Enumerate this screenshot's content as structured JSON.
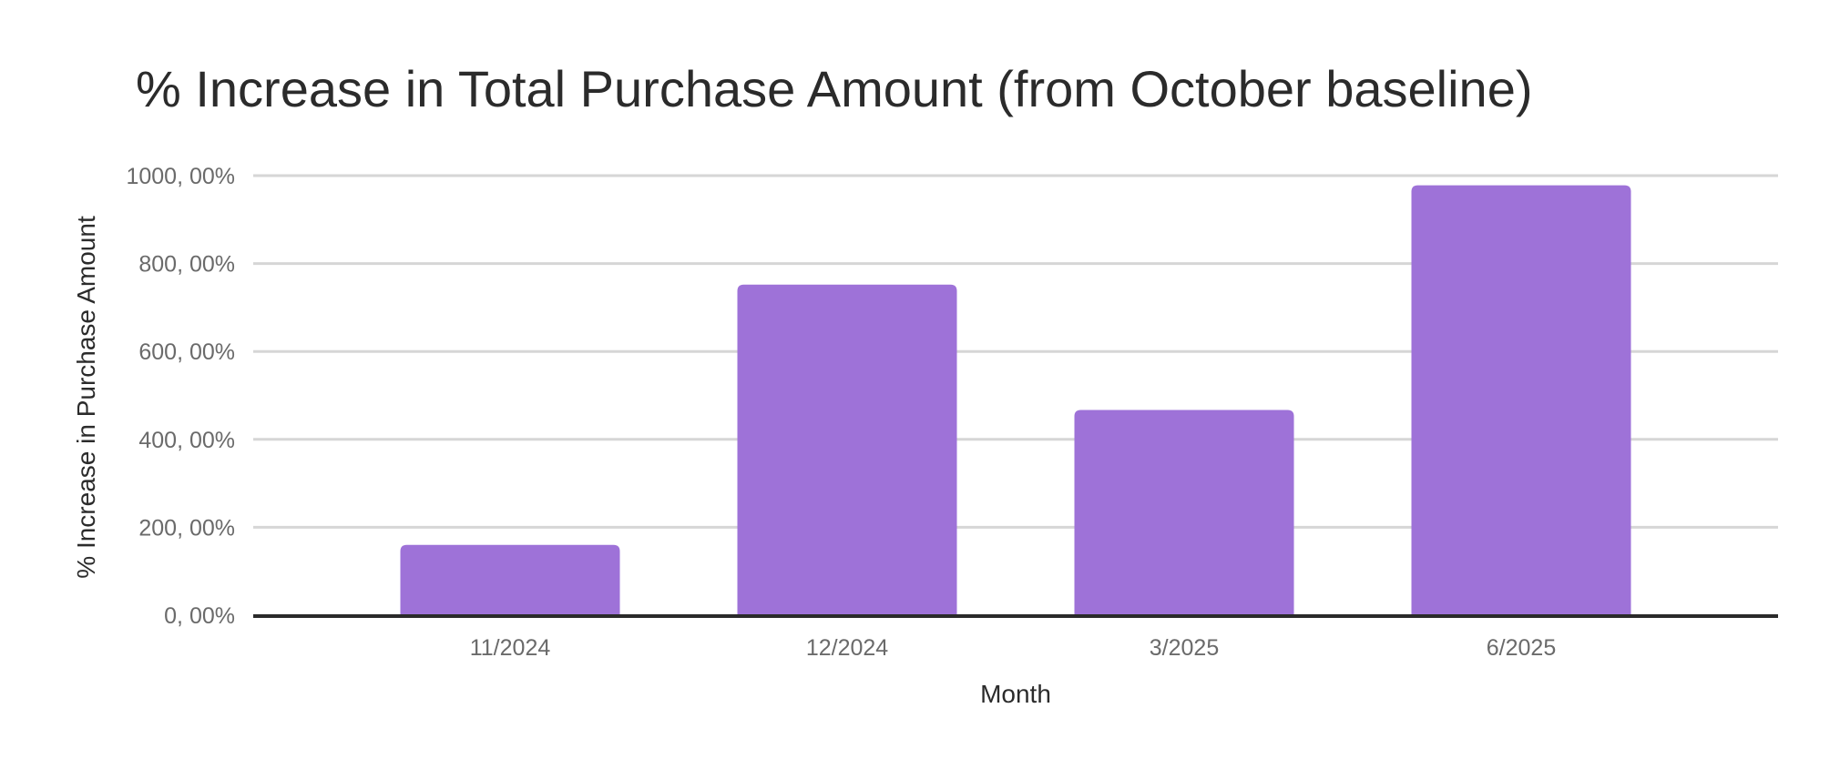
{
  "chart_data": {
    "type": "bar",
    "title": "% Increase in Total Purchase Amount (from October baseline)",
    "xlabel": "Month",
    "ylabel": "% Increase in Purchase Amount",
    "categories": [
      "11/2024",
      "12/2024",
      "3/2025",
      "6/2025"
    ],
    "values": [
      160,
      752,
      467,
      978
    ],
    "unit": "%",
    "ylim": [
      0,
      1000
    ],
    "yticks": [
      0,
      200,
      400,
      600,
      800,
      1000
    ],
    "ytick_labels": [
      "0, 00%",
      "200, 00%",
      "400, 00%",
      "600, 00%",
      "800, 00%",
      "1000, 00%"
    ],
    "grid": true,
    "legend": "none",
    "bar_color": "#9e72d8"
  }
}
